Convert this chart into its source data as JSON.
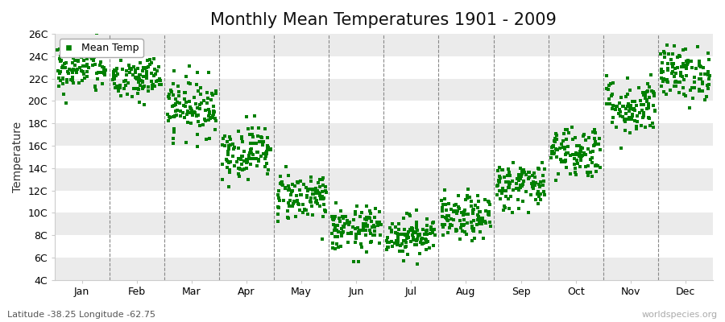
{
  "title": "Monthly Mean Temperatures 1901 - 2009",
  "ylabel": "Temperature",
  "xlabel": "",
  "subtitle": "Latitude -38.25 Longitude -62.75",
  "watermark": "worldspecies.org",
  "legend_label": "Mean Temp",
  "dot_color": "#008000",
  "background_color": "#ffffff",
  "band_color": "#ebebeb",
  "ylim": [
    4,
    26
  ],
  "ytick_labels": [
    "4C",
    "6C",
    "8C",
    "10C",
    "12C",
    "14C",
    "16C",
    "18C",
    "20C",
    "22C",
    "24C",
    "26C"
  ],
  "ytick_values": [
    4,
    6,
    8,
    10,
    12,
    14,
    16,
    18,
    20,
    22,
    24,
    26
  ],
  "months": [
    "Jan",
    "Feb",
    "Mar",
    "Apr",
    "May",
    "Jun",
    "Jul",
    "Aug",
    "Sep",
    "Oct",
    "Nov",
    "Dec"
  ],
  "month_mean_temps": [
    23.0,
    22.0,
    19.5,
    15.5,
    11.5,
    8.5,
    8.0,
    9.5,
    12.5,
    15.5,
    19.5,
    22.5
  ],
  "month_std_temps": [
    1.2,
    1.1,
    1.3,
    1.2,
    1.1,
    1.0,
    0.9,
    1.0,
    1.1,
    1.2,
    1.3,
    1.2
  ],
  "n_years": 109,
  "title_fontsize": 15,
  "axis_fontsize": 10,
  "tick_fontsize": 9,
  "legend_fontsize": 9
}
